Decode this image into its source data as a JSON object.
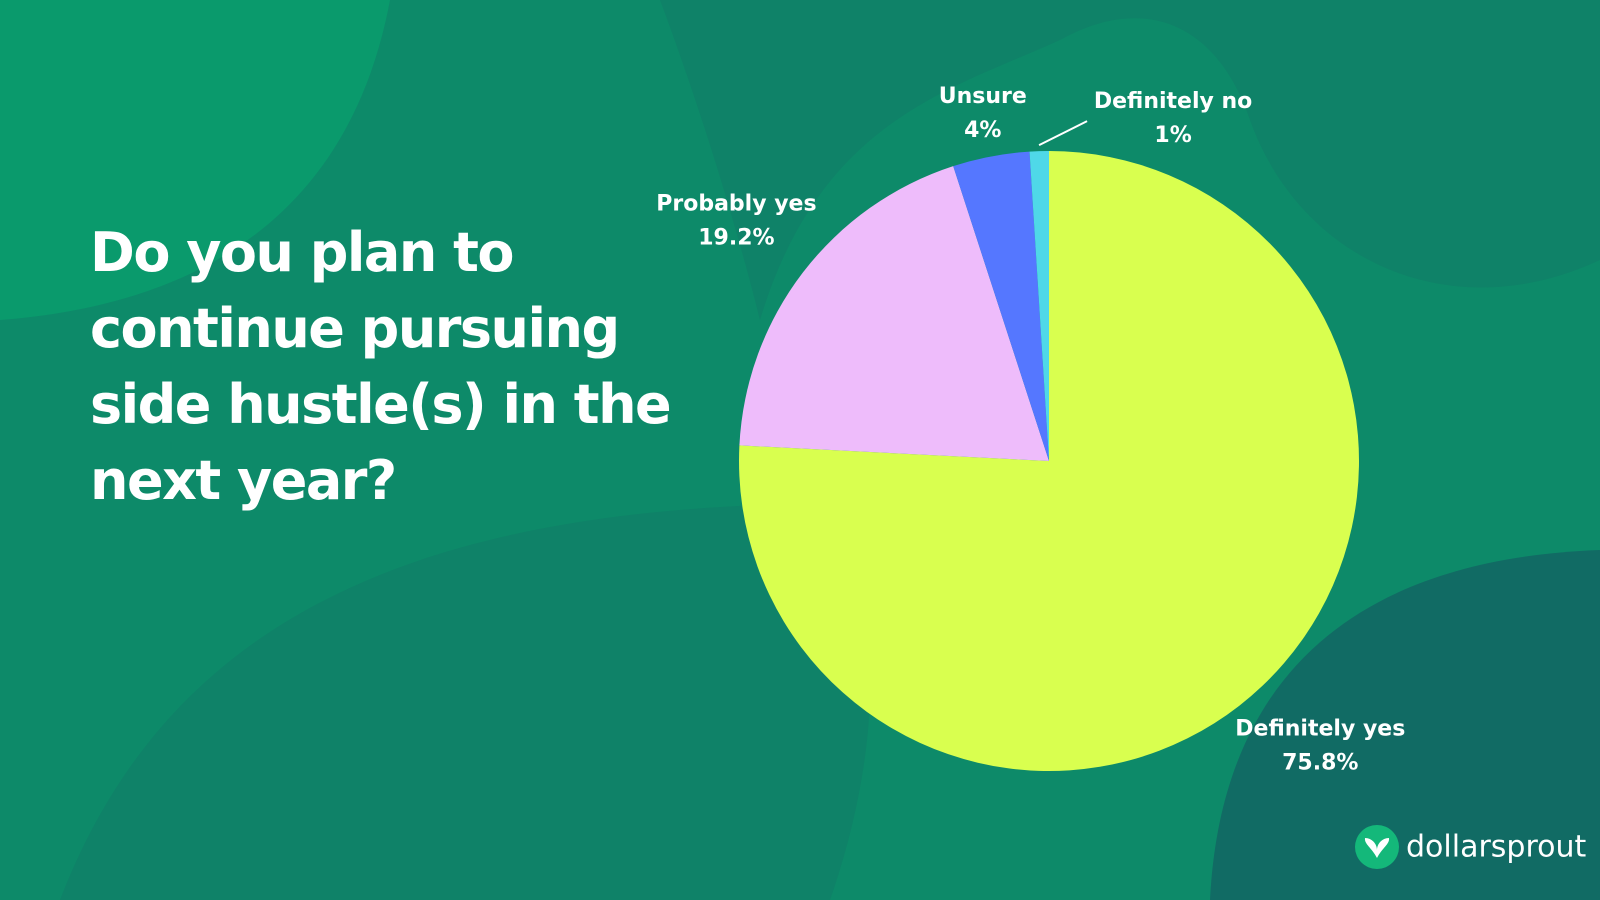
{
  "chart_data": {
    "type": "pie",
    "title": [
      "Do you plan to",
      "continue pursuing",
      "side hustle(s) in the",
      "next year?"
    ],
    "categories": [
      "Definitely yes",
      "Probably yes",
      "Unsure",
      "Definitely no"
    ],
    "values": [
      75.8,
      19.2,
      4,
      1
    ],
    "value_labels": [
      "75.8%",
      "19.2%",
      "4%",
      "1%"
    ],
    "colors": [
      "#d9ff4f",
      "#eebcfb",
      "#5577ff",
      "#4fd8e8"
    ]
  },
  "logo": "dollarsprout"
}
